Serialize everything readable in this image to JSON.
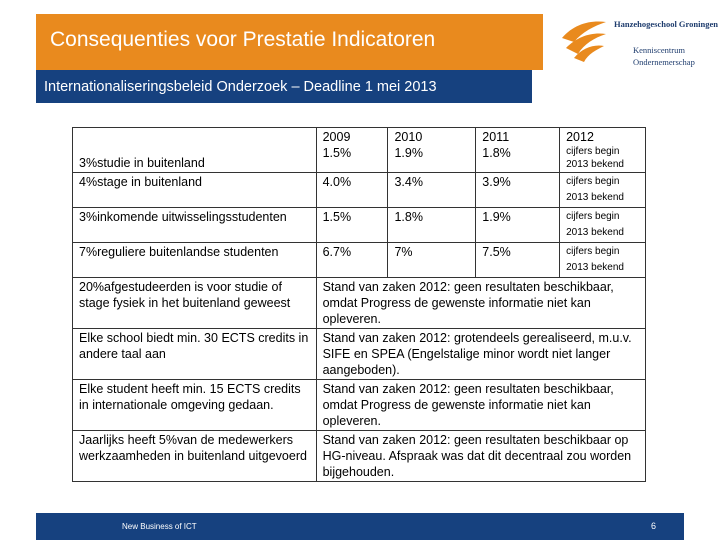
{
  "header": {
    "title": "Consequenties voor Prestatie Indicatoren",
    "subtitle": "Internationaliseringsbeleid Onderzoek – Deadline 1 mei 2013"
  },
  "logo": {
    "name": "Hanzehogeschool Groningen",
    "line1": "Kenniscentrum",
    "line2": "Ondernemerschap",
    "mark_icon": "hanze-bird-logo-icon"
  },
  "table": {
    "years": [
      "2009",
      "2010",
      "2011",
      "2012"
    ],
    "rows": [
      {
        "indicator": "3%studie in buitenland",
        "values": [
          "1.5%",
          "1.9%",
          "1.8%",
          "cijfers begin 2013 bekend"
        ]
      },
      {
        "indicator": "4%stage in buitenland",
        "values": [
          "4.0%",
          "3.4%",
          "3.9%",
          "cijfers begin 2013 bekend"
        ]
      },
      {
        "indicator": "3%inkomende uitwisselingsstudenten",
        "values": [
          "1.5%",
          "1.8%",
          "1.9%",
          "cijfers begin 2013 bekend"
        ]
      },
      {
        "indicator": "7%reguliere buitenlandse studenten",
        "values": [
          "6.7%",
          "7%",
          "7.5%",
          "cijfers begin 2013 bekend"
        ]
      }
    ],
    "status_rows": [
      {
        "indicator": "20%afgestudeerden is voor studie of stage fysiek in het buitenland geweest",
        "status": "Stand van zaken 2012: geen resultaten beschikbaar, omdat Progress de gewenste informatie niet kan opleveren."
      },
      {
        "indicator": "Elke school biedt min. 30 ECTS credits in andere taal aan",
        "status": "Stand van zaken 2012: grotendeels gerealiseerd, m.u.v. SIFE en SPEA (Engelstalige minor wordt niet langer aangeboden)."
      },
      {
        "indicator": "Elke student heeft min. 15 ECTS credits in internationale omgeving gedaan.",
        "status": "Stand van zaken 2012: geen resultaten beschikbaar, omdat Progress de gewenste informatie niet kan opleveren."
      },
      {
        "indicator": "Jaarlijks heeft 5%van de medewerkers werkzaamheden in buitenland uitgevoerd",
        "status": "Stand van zaken 2012: geen resultaten beschikbaar op HG-niveau. Afspraak was dat dit decentraal zou worden bijgehouden."
      }
    ]
  },
  "footer": {
    "left_text": "New Business of ICT",
    "page_number": "6"
  },
  "colors": {
    "orange": "#e98a1e",
    "navy": "#16417f"
  }
}
